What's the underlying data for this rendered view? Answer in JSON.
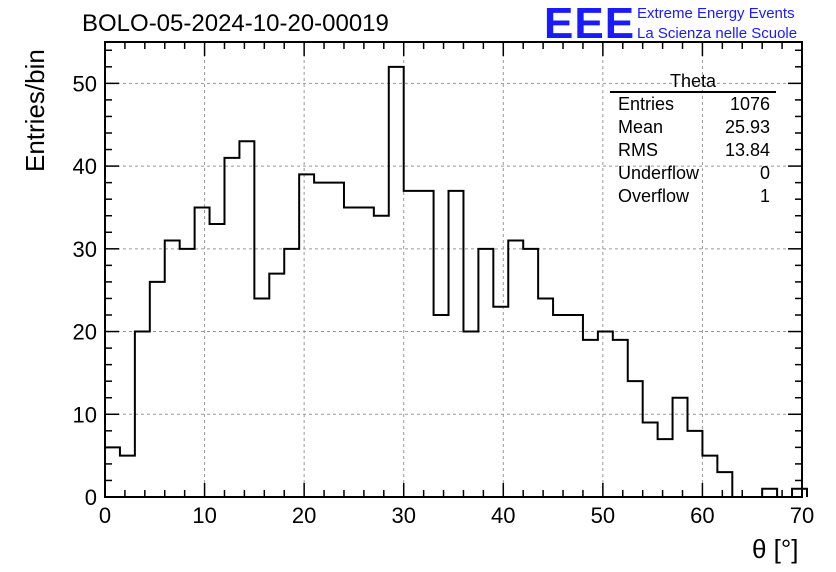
{
  "header": {
    "title": "BOLO-05-2024-10-20-00019",
    "logo_text": "EEE",
    "tagline_1": "Extreme Energy Events",
    "tagline_2": "La Scienza nelle Scuole",
    "brand_color": "#1a1aff"
  },
  "stats_box": {
    "name": "Theta",
    "rows": [
      {
        "label": "Entries",
        "value": "1076"
      },
      {
        "label": "Mean",
        "value": "25.93"
      },
      {
        "label": "RMS",
        "value": "13.84"
      },
      {
        "label": "Underflow",
        "value": "0"
      },
      {
        "label": "Overflow",
        "value": "1"
      }
    ]
  },
  "chart_data": {
    "type": "histogram",
    "title": "BOLO-05-2024-10-20-00019",
    "xlabel": "θ [°]",
    "ylabel": "Entries/bin",
    "xlim": [
      0,
      70
    ],
    "ylim": [
      0,
      55
    ],
    "bin_width": 1.5,
    "xticks": [
      0,
      10,
      20,
      30,
      40,
      50,
      60,
      70
    ],
    "yticks": [
      0,
      10,
      20,
      30,
      40,
      50
    ],
    "grid": true,
    "counts": [
      6,
      5,
      20,
      26,
      31,
      30,
      35,
      33,
      41,
      43,
      24,
      27,
      30,
      39,
      38,
      38,
      35,
      35,
      34,
      52,
      37,
      37,
      22,
      37,
      20,
      30,
      23,
      31,
      30,
      24,
      22,
      22,
      19,
      20,
      19,
      14,
      9,
      7,
      12,
      8,
      5,
      3,
      0,
      0,
      1,
      0,
      1
    ]
  }
}
